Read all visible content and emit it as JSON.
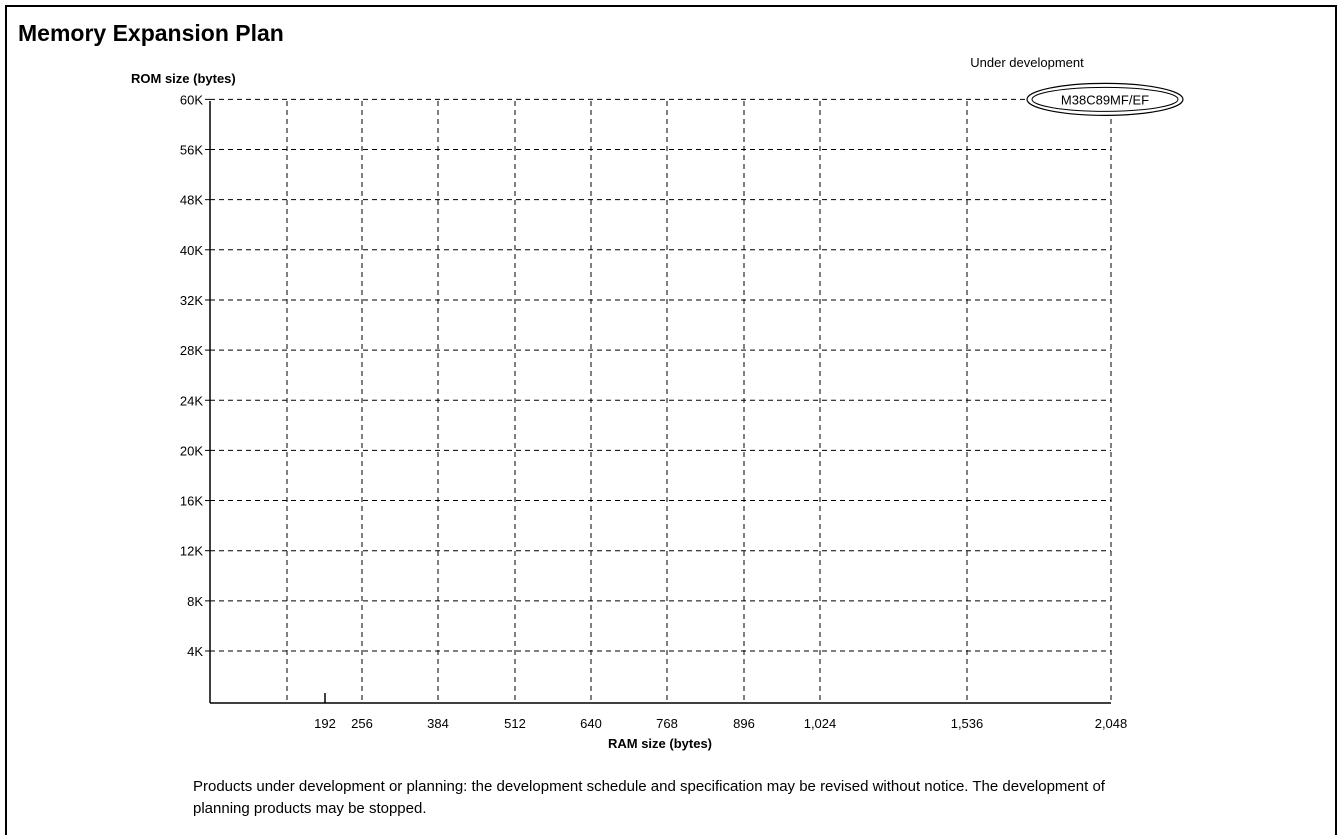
{
  "chart_data": {
    "type": "scatter",
    "title": "Memory Expansion Plan",
    "xlabel": "RAM size (bytes)",
    "ylabel": "ROM size (bytes)",
    "x_ticks": [
      {
        "value": 128,
        "label": "",
        "grid": true
      },
      {
        "value": 192,
        "label": "192",
        "grid": false
      },
      {
        "value": 256,
        "label": "256",
        "grid": true
      },
      {
        "value": 384,
        "label": "384",
        "grid": true
      },
      {
        "value": 512,
        "label": "512",
        "grid": true
      },
      {
        "value": 640,
        "label": "640",
        "grid": true
      },
      {
        "value": 768,
        "label": "768",
        "grid": true
      },
      {
        "value": 896,
        "label": "896",
        "grid": true
      },
      {
        "value": 1024,
        "label": "1,024",
        "grid": true
      },
      {
        "value": 1536,
        "label": "1,536",
        "grid": true
      },
      {
        "value": 2048,
        "label": "2,048",
        "grid": true
      }
    ],
    "y_ticks": [
      "4K",
      "8K",
      "12K",
      "16K",
      "20K",
      "24K",
      "28K",
      "32K",
      "40K",
      "48K",
      "56K",
      "60K"
    ],
    "grid": true,
    "legend": {
      "label": "Under development",
      "placement": "top-right"
    },
    "points": [
      {
        "label": "M38C89MF/EF",
        "x": 2048,
        "y": "60K",
        "status": "Under development"
      }
    ]
  },
  "note": "Products under development or planning: the development schedule and specification may be revised without notice. The development of planning products may be stopped."
}
